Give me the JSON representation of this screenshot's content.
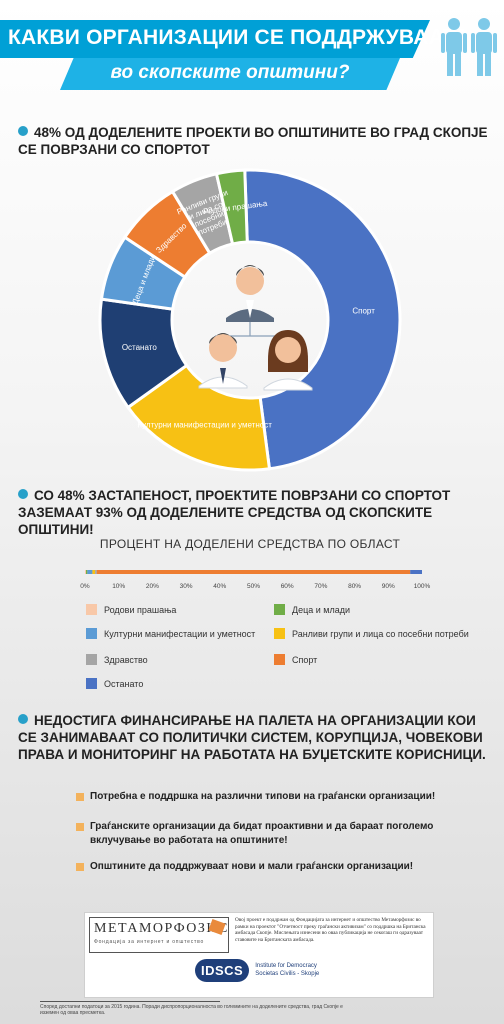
{
  "header": {
    "title": "КАКВИ ОРГАНИЗАЦИИ СЕ ПОДДРЖУВААТ?",
    "subtitle": "во скопските општини?"
  },
  "sections": {
    "s1": "48% ОД ДОДЕЛЕНИТЕ ПРОЕКТИ ВО ОПШТИНИТЕ ВО ГРАД СКОПЈЕ СЕ ПОВРЗАНИ СО СПОРТОТ",
    "s2": "СО 48% ЗАСТАПЕНОСТ, ПРОЕКТИТЕ ПОВРЗАНИ СО СПОРТОТ ЗАЗЕМААТ 93% ОД ДОДЕЛЕНИТЕ СРЕДСТВА ОД СКОПСКИТЕ ОПШТИНИ!",
    "s3": "НЕДОСТИГА ФИНАНСИРАЊЕ НА ПАЛЕТА НА ОРГАНИЗАЦИИ КОИ СЕ ЗАНИМАВААТ СО ПОЛИТИЧКИ СИСТЕМ, КОРУПЦИЈА, ЧОВЕКОВИ ПРАВА И МОНИТОРИНГ НА РАБОТАТА НА БУЏЕТСКИТЕ КОРИСНИЦИ."
  },
  "chart_data": [
    {
      "type": "pie",
      "style": "donut",
      "categories": [
        "Спорт",
        "Културни манифестации и уметност",
        "Останато",
        "Деца и млади",
        "Здравство",
        "Ранливи групи и лица со посебни потреби",
        "Родови прашања"
      ],
      "values": [
        48,
        17,
        12,
        7,
        7,
        5,
        3
      ],
      "colors": [
        "#4a72c4",
        "#f7c114",
        "#1f3f73",
        "#5b9bd5",
        "#ed7d31",
        "#a5a5a5",
        "#70ad47"
      ],
      "title": ""
    },
    {
      "type": "bar",
      "orientation": "horizontal",
      "stacked": true,
      "title": "ПРОЦЕНТ НА ДОДЕЛЕНИ СРЕДСТВА ПО ОБЛАСТ",
      "x_ticks": [
        "0%",
        "10%",
        "20%",
        "30%",
        "40%",
        "50%",
        "60%",
        "70%",
        "80%",
        "90%",
        "100%"
      ],
      "xlim": [
        0,
        100
      ],
      "series": [
        {
          "name": "Родови прашања",
          "value": 0.3,
          "color": "#f8c8a8"
        },
        {
          "name": "Деца и млади",
          "value": 0.4,
          "color": "#70ad47"
        },
        {
          "name": "Културни  манифестации и уметност",
          "value": 1.5,
          "color": "#5b9bd5"
        },
        {
          "name": "Ранливи групи и  лица со посебни потреби",
          "value": 0.8,
          "color": "#f7c114"
        },
        {
          "name": "Здравство",
          "value": 0.5,
          "color": "#a5a5a5"
        },
        {
          "name": "Спорт",
          "value": 93,
          "color": "#ed7d31"
        },
        {
          "name": "Останато",
          "value": 3.5,
          "color": "#4a72c4"
        }
      ]
    }
  ],
  "recommendations": [
    "Потребна е поддршка на различни типови на граѓански организации!",
    "Граѓанските организации да бидат проактивни и да бараат поголемо вклучување во работата на општините!",
    "Општините да поддржуваат нови и мали граѓански организации!"
  ],
  "sponsor": {
    "logo": "МЕТАМОРФОЗИС",
    "logo_sub": "Фондација за интернет и општество",
    "text": "Овој проект е поддржан од Фондацијата за интернет и општество Метаморфозис во рамки на проектот \"Отчетност преку граѓански активизам\" со поддршка на Британска амбасада Скопје. Мислењата изнесени во оваа публикација не секогаш ги одразуваат ставовите на Британската амбасада.",
    "idscs_logo": "IDSCS",
    "idscs_text1": "Institute for Democracy",
    "idscs_text2": "Societas Civilis - Skopje"
  },
  "footnote": "Според достапни податоци за 2015 година. Поради диспропорционалноста во големините на доделените средства, град Скопје е изземен од оваа пресметка."
}
